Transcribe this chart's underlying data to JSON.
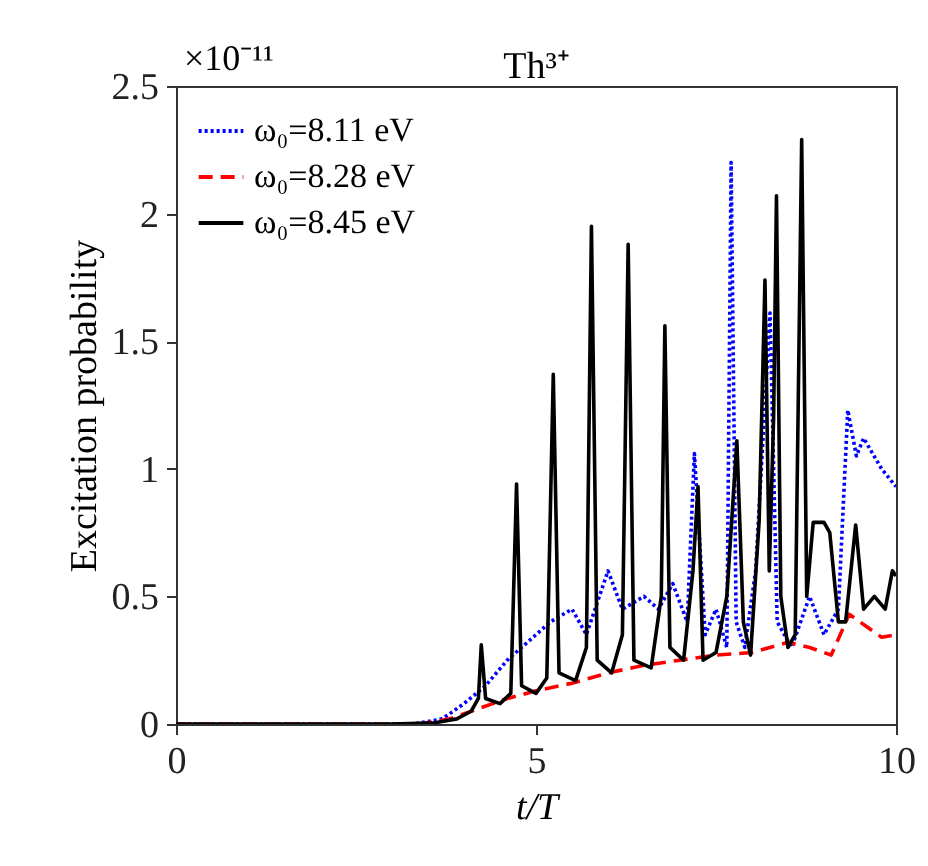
{
  "chart_data": {
    "type": "line",
    "title": "Th³⁺",
    "xlabel": "t/T",
    "ylabel": "Excitation probability",
    "annotations": [
      "×10⁻¹¹"
    ],
    "xlim": [
      0,
      10
    ],
    "xticks": [
      0,
      5,
      10
    ],
    "ylim": [
      0,
      2.5
    ],
    "yticks": [
      0,
      0.5,
      1,
      1.5,
      2,
      2.5
    ],
    "legend": "top left",
    "series": [
      {
        "name": "ω₀=8.11 eV",
        "color": "#0000ff",
        "line_style": "dotted",
        "x": [
          0,
          3.3,
          3.7,
          4.0,
          4.3,
          4.6,
          4.8,
          5.0,
          5.2,
          5.5,
          5.7,
          6.0,
          6.2,
          6.5,
          6.7,
          6.9,
          7.1,
          7.2,
          7.35,
          7.5,
          7.65,
          7.71,
          7.78,
          7.9,
          8.05,
          8.25,
          8.35,
          8.55,
          8.8,
          9.0,
          9.2,
          9.33,
          9.45,
          9.55,
          9.8,
          10
        ],
        "values": [
          0,
          0,
          0.02,
          0.08,
          0.15,
          0.25,
          0.3,
          0.35,
          0.4,
          0.45,
          0.35,
          0.6,
          0.45,
          0.5,
          0.45,
          0.55,
          0.4,
          1.06,
          0.35,
          0.45,
          0.3,
          2.2,
          0.4,
          0.3,
          0.6,
          1.61,
          0.4,
          0.3,
          0.5,
          0.35,
          0.45,
          1.23,
          1.05,
          1.12,
          1.0,
          0.93
        ]
      },
      {
        "name": "ω₀=8.28 eV",
        "color": "#ff0000",
        "line_style": "dashed",
        "x": [
          0,
          3.4,
          3.8,
          4.2,
          4.6,
          5.0,
          5.5,
          6.0,
          6.5,
          7.0,
          7.5,
          8.0,
          8.5,
          8.8,
          9.1,
          9.35,
          9.6,
          9.8,
          10
        ],
        "values": [
          0,
          0,
          0.02,
          0.06,
          0.1,
          0.13,
          0.16,
          0.2,
          0.23,
          0.25,
          0.27,
          0.28,
          0.32,
          0.3,
          0.27,
          0.43,
          0.38,
          0.34,
          0.35
        ]
      },
      {
        "name": "ω₀=8.45 eV",
        "color": "#000000",
        "line_style": "solid",
        "x": [
          0,
          3,
          3.6,
          3.9,
          4.1,
          4.2,
          4.24,
          4.3,
          4.5,
          4.65,
          4.73,
          4.8,
          5.0,
          5.15,
          5.24,
          5.32,
          5.55,
          5.7,
          5.77,
          5.85,
          6.05,
          6.2,
          6.28,
          6.36,
          6.6,
          6.74,
          6.79,
          6.86,
          7.05,
          7.18,
          7.25,
          7.32,
          7.5,
          7.65,
          7.79,
          7.88,
          7.98,
          8.1,
          8.18,
          8.24,
          8.3,
          8.34,
          8.4,
          8.5,
          8.6,
          8.69,
          8.76,
          8.85,
          9.0,
          9.08,
          9.2,
          9.3,
          9.44,
          9.55,
          9.7,
          9.85,
          9.95,
          10
        ],
        "values": [
          0,
          0,
          0.005,
          0.02,
          0.05,
          0.1,
          0.31,
          0.1,
          0.08,
          0.12,
          0.94,
          0.15,
          0.12,
          0.18,
          1.37,
          0.2,
          0.17,
          0.3,
          1.95,
          0.25,
          0.2,
          0.35,
          1.88,
          0.25,
          0.22,
          0.5,
          1.56,
          0.3,
          0.25,
          0.6,
          0.93,
          0.25,
          0.28,
          0.5,
          1.11,
          0.4,
          0.27,
          0.8,
          1.74,
          0.6,
          1.2,
          2.07,
          0.5,
          0.3,
          0.35,
          2.29,
          0.5,
          0.79,
          0.79,
          0.75,
          0.4,
          0.4,
          0.78,
          0.45,
          0.5,
          0.45,
          0.6,
          0.58
        ]
      }
    ]
  }
}
